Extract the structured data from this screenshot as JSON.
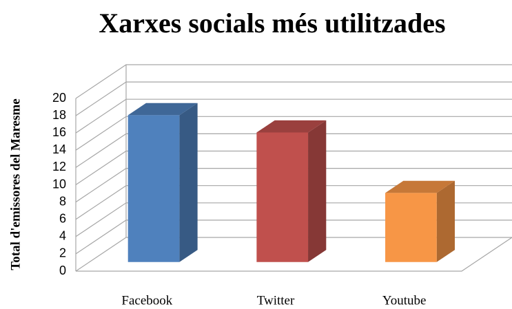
{
  "chart_data": {
    "type": "bar3d",
    "title": "Xarxes socials més utilitzades",
    "y_label": "Total d'emissores del Maresme",
    "categories": [
      "Facebook",
      "Twitter",
      "Youtube"
    ],
    "values": [
      17,
      15,
      8
    ],
    "colors": [
      "#4f81bd",
      "#c0504d",
      "#f79646"
    ],
    "ylim": [
      0,
      20
    ],
    "yticks": [
      0,
      2,
      4,
      6,
      8,
      10,
      12,
      14,
      16,
      18,
      20
    ],
    "grid": true
  }
}
